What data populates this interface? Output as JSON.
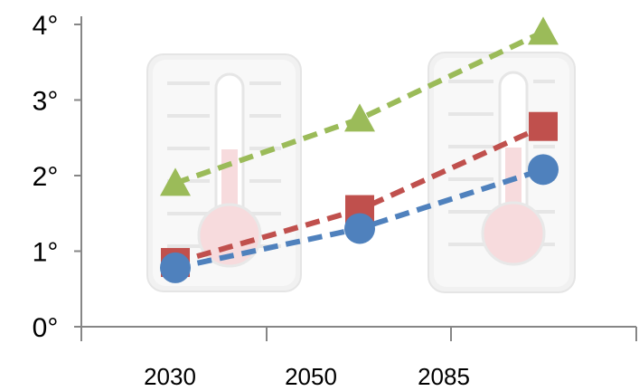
{
  "chart_data": {
    "type": "line",
    "x_tick_labels": [
      "2030",
      "2050",
      "2085"
    ],
    "y_tick_labels": [
      "0°",
      "1°",
      "2°",
      "3°",
      "4°"
    ],
    "ylim": [
      0,
      4
    ],
    "grid": false,
    "legend": "none",
    "x": [
      "2030",
      "2050",
      "2085"
    ],
    "series": [
      {
        "color": "#9bbb59",
        "marker": "triangle",
        "values": [
          1.9,
          2.75,
          3.9
        ]
      },
      {
        "color": "#c0504d",
        "marker": "square",
        "values": [
          0.85,
          1.55,
          2.65
        ]
      },
      {
        "color": "#4f81bd",
        "marker": "circle",
        "values": [
          0.78,
          1.3,
          2.08
        ]
      }
    ],
    "background_icons": [
      "thermometer-icon",
      "thermometer-icon"
    ]
  }
}
